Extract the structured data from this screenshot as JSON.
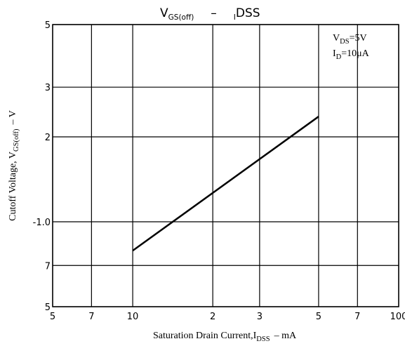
{
  "chart_data": {
    "type": "line",
    "title": [
      "V",
      "GS(off)",
      "–",
      "I",
      "DSS"
    ],
    "xlabel": [
      "Saturation Drain Current,I",
      "DSS",
      "– mA"
    ],
    "ylabel": [
      "Cutoff Voltage, V",
      "GS(off)",
      "– V"
    ],
    "annotations": [
      [
        "V",
        "DS",
        "=5V"
      ],
      [
        "I",
        "D",
        "=10μA"
      ]
    ],
    "x": [
      10,
      50
    ],
    "series": [
      {
        "color": "#000000",
        "values": [
          0.79,
          2.36
        ]
      }
    ],
    "xscale": "log",
    "yscale": "log",
    "grid": true,
    "xlim": [
      5,
      100
    ],
    "xticks": [
      5,
      7,
      10,
      {
        "value": 20,
        "label": "2"
      },
      {
        "value": 30,
        "label": "3"
      },
      {
        "value": 50,
        "label": "5"
      },
      {
        "value": 70,
        "label": "7"
      },
      100
    ],
    "ylim": [
      0.5,
      5
    ],
    "yticks": [
      {
        "value": 0.5,
        "label": "5"
      },
      {
        "value": 0.7,
        "label": "7"
      },
      {
        "value": 1,
        "label": "-1.0"
      },
      2,
      3,
      5
    ]
  }
}
